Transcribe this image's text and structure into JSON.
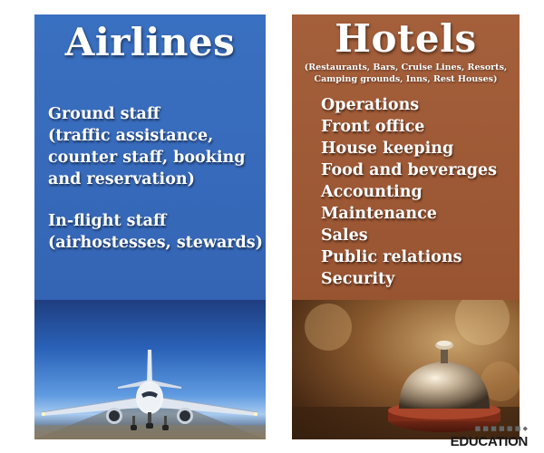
{
  "airlines": {
    "title": "Airlines",
    "block1_lines": [
      "Ground staff",
      "(traffic assistance,",
      "counter staff, booking",
      "and reservation)"
    ],
    "block2_lines": [
      "In-flight staff",
      "(airhostesses, stewards)"
    ],
    "panel_color": "#3566b6"
  },
  "hotels": {
    "title": "Hotels",
    "subtitle_line1": "(Restaurants, Bars, Cruise Lines, Resorts,",
    "subtitle_line2": "Camping grounds, Inns, Rest Houses)",
    "items": [
      "Operations",
      "Front office",
      "House keeping",
      "Food and beverages",
      "Accounting",
      "Maintenance",
      "Sales",
      "Public relations",
      "Security"
    ],
    "panel_color": "#9a5532"
  },
  "brand": {
    "main": "EDUCATION"
  }
}
